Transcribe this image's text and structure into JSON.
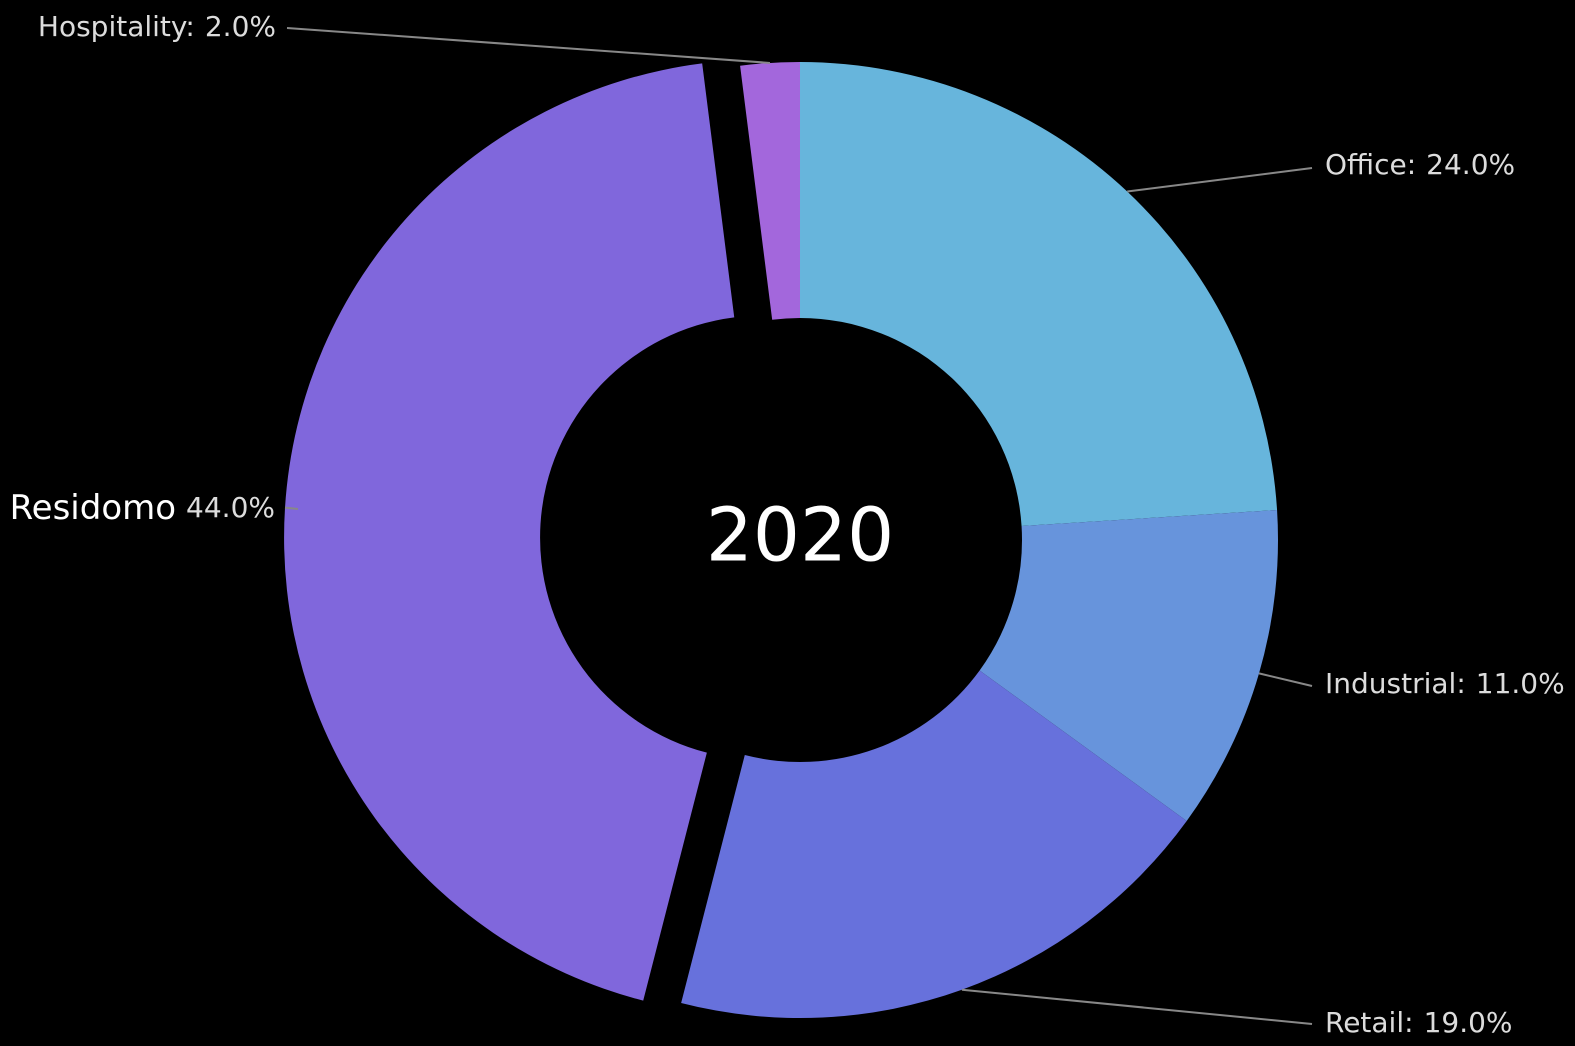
{
  "chart_data": {
    "type": "donut",
    "center_label": "2020",
    "categories": [
      "Office:",
      "Industrial:",
      "Retail:",
      "Residomo",
      "Hospitality:"
    ],
    "values": [
      24,
      11,
      19,
      44,
      2
    ],
    "value_labels": [
      "24.0%",
      "11.0%",
      "19.0%",
      "44.0%",
      "2.0%"
    ],
    "colors": [
      "#67b5dc",
      "#6794dc",
      "#6771dc",
      "#8067dc",
      "#a367dc"
    ],
    "exploded": "Residomo"
  }
}
